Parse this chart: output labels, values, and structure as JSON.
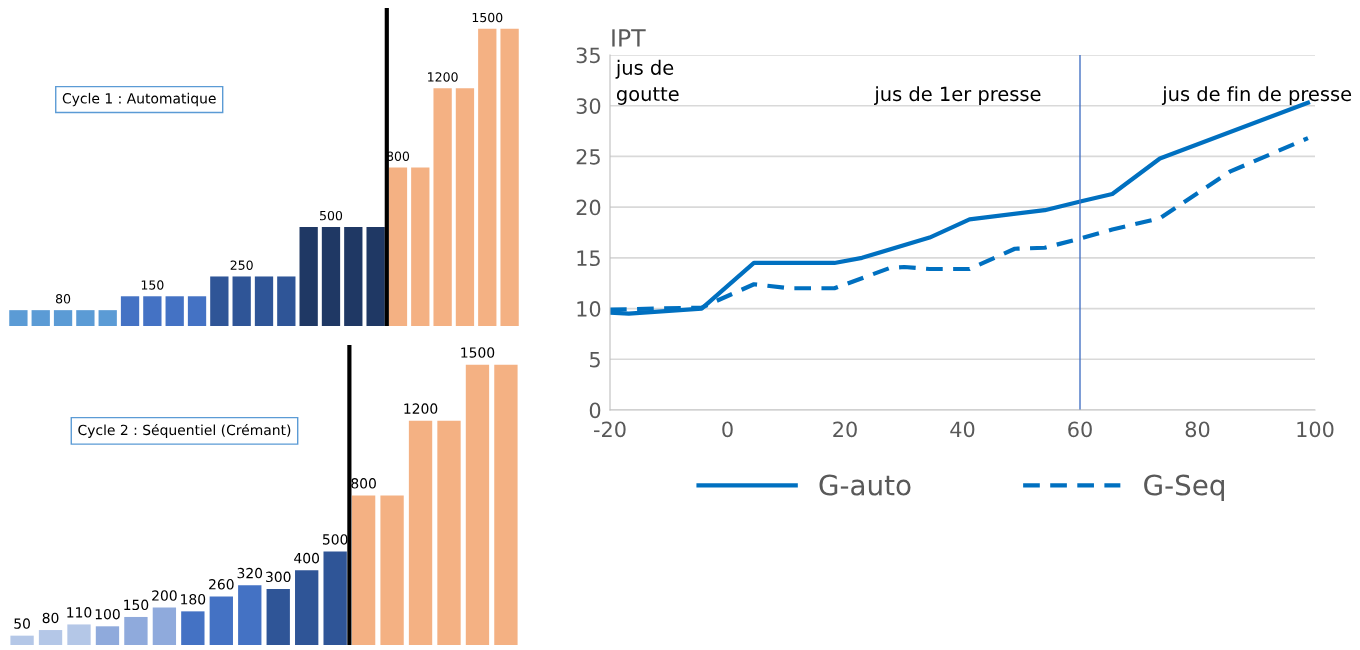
{
  "chart_data": [
    {
      "type": "bar",
      "title": "Cycle 1 : Automatique",
      "categories": [
        null,
        null,
        null,
        null,
        null,
        null,
        null,
        null,
        null,
        null,
        null,
        null,
        null,
        null,
        null,
        null,
        null,
        null,
        null,
        null,
        null,
        null,
        null
      ],
      "values": [
        80,
        80,
        80,
        80,
        80,
        150,
        150,
        150,
        150,
        250,
        250,
        250,
        250,
        500,
        500,
        500,
        500,
        800,
        800,
        1200,
        1200,
        1500,
        1500
      ],
      "colors": [
        "#5b9bd5",
        "#5b9bd5",
        "#5b9bd5",
        "#5b9bd5",
        "#5b9bd5",
        "#4472c4",
        "#4472c4",
        "#4472c4",
        "#4472c4",
        "#2f5597",
        "#2f5597",
        "#2f5597",
        "#2f5597",
        "#1f3864",
        "#1f3864",
        "#1f3864",
        "#1f3864",
        "#f4b183",
        "#f4b183",
        "#f4b183",
        "#f4b183",
        "#f4b183",
        "#f4b183"
      ],
      "value_labels": [
        null,
        null,
        "80",
        null,
        null,
        null,
        "150",
        null,
        null,
        null,
        "250",
        null,
        null,
        null,
        "500",
        null,
        null,
        "800",
        null,
        "1200",
        null,
        "1500",
        null
      ],
      "tick_labels": false
    },
    {
      "type": "bar",
      "title": "Cycle 2 : Séquentiel (Crémant)",
      "categories": [
        null,
        null,
        null,
        null,
        null,
        null,
        null,
        null,
        null,
        null,
        null,
        null,
        null,
        null,
        null,
        null,
        null,
        null
      ],
      "values": [
        50,
        80,
        110,
        100,
        150,
        200,
        180,
        260,
        320,
        300,
        400,
        500,
        800,
        800,
        1200,
        1200,
        1500,
        1500
      ],
      "colors": [
        "#b4c7e7",
        "#b4c7e7",
        "#b4c7e7",
        "#8faadc",
        "#8faadc",
        "#8faadc",
        "#4472c4",
        "#4472c4",
        "#4472c4",
        "#2f5597",
        "#2f5597",
        "#2f5597",
        "#f4b183",
        "#f4b183",
        "#f4b183",
        "#f4b183",
        "#f4b183",
        "#f4b183"
      ],
      "value_labels": [
        "50",
        "80",
        "110",
        "100",
        "150",
        "200",
        "180",
        "260",
        "320",
        "300",
        "400",
        "500",
        "800",
        null,
        "1200",
        null,
        "1500",
        null
      ],
      "tick_labels": false
    },
    {
      "type": "line",
      "ylabel": "IPT",
      "xlim": [
        -20,
        100
      ],
      "xticks": [
        -20,
        0,
        20,
        40,
        60,
        80,
        100
      ],
      "ylim": [
        0,
        35
      ],
      "yticks": [
        0,
        5,
        10,
        15,
        20,
        25,
        30,
        35
      ],
      "grid": "y",
      "legend": "bottom",
      "ref_lines": [
        {
          "axis": "x",
          "value": 60,
          "color": "#4472c4"
        }
      ],
      "annotations": [
        "jus de\ngoutte",
        "jus de 1er presse",
        "jus de fin de presse"
      ],
      "series": [
        {
          "name": "G-auto",
          "color": "#0070c0",
          "line_style": "solid",
          "x": [
            -20,
            -16.8,
            -4.4,
            4.5,
            18.2,
            22.9,
            34.4,
            41.2,
            54,
            60.4,
            65.5,
            73.6,
            98.8
          ],
          "values": [
            9.6,
            9.5,
            10.0,
            14.5,
            14.5,
            15.0,
            17.0,
            18.8,
            19.7,
            20.6,
            21.3,
            24.8,
            30.3
          ]
        },
        {
          "name": "G-Seq",
          "color": "#0070c0",
          "line_style": "dashed",
          "x": [
            -20,
            -4.4,
            4.5,
            10.5,
            18.2,
            27.6,
            30.1,
            34.4,
            41.2,
            48.9,
            54,
            60,
            65.5,
            73.6,
            85.5,
            98.8
          ],
          "values": [
            9.9,
            10.1,
            12.4,
            12.0,
            12.0,
            14.0,
            14.1,
            13.9,
            13.9,
            15.9,
            16.0,
            16.9,
            17.8,
            18.9,
            23.5,
            26.8
          ]
        }
      ]
    }
  ]
}
